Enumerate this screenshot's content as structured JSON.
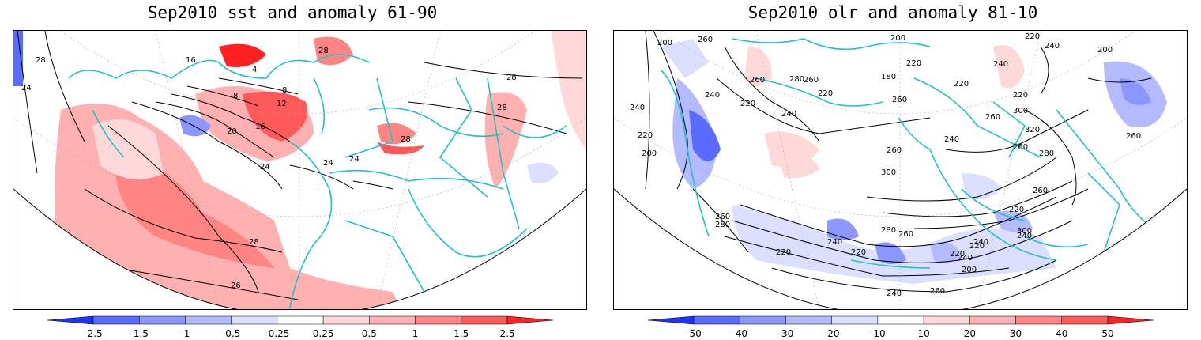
{
  "panels": [
    {
      "title": "Sep2010 sst and anomaly 61-90",
      "contour_labels": [
        "28",
        "24",
        "16",
        "4",
        "8",
        "8",
        "12",
        "16",
        "20",
        "24",
        "28",
        "28",
        "26",
        "24",
        "24",
        "28",
        "28",
        "28"
      ],
      "colorbar": {
        "tick_labels": [
          "-2.5",
          "-1.5",
          "-1",
          "-0.5",
          "-0.25",
          "0.25",
          "0.5",
          "1",
          "1.5",
          "2.5"
        ],
        "colors": [
          "#1e32ff",
          "#5a6bff",
          "#8c96ff",
          "#b4baff",
          "#dcdfff",
          "#ffffff",
          "#ffd9d9",
          "#ffb0b0",
          "#ff8585",
          "#ff5a5a",
          "#ff2020"
        ]
      }
    },
    {
      "title": "Sep2010 olr and anomaly 81-10",
      "contour_labels": [
        "200",
        "260",
        "200",
        "240",
        "260",
        "280",
        "240",
        "200",
        "220",
        "240",
        "220",
        "220",
        "260",
        "180",
        "220",
        "260",
        "220",
        "240",
        "220",
        "240",
        "220",
        "260",
        "300",
        "320",
        "280",
        "200",
        "260",
        "260",
        "240",
        "260",
        "300",
        "280",
        "300",
        "260",
        "240",
        "220",
        "240",
        "260",
        "280",
        "260",
        "240",
        "240",
        "220",
        "220",
        "220",
        "220",
        "200",
        "240",
        "260"
      ],
      "colorbar": {
        "tick_labels": [
          "-50",
          "-40",
          "-30",
          "-20",
          "-10",
          "10",
          "20",
          "30",
          "40",
          "50"
        ],
        "colors": [
          "#1e32ff",
          "#5a6bff",
          "#8c96ff",
          "#b4baff",
          "#dcdfff",
          "#ffffff",
          "#ffd9d9",
          "#ffb0b0",
          "#ff8585",
          "#ff5a5a",
          "#ff2020"
        ]
      }
    }
  ]
}
